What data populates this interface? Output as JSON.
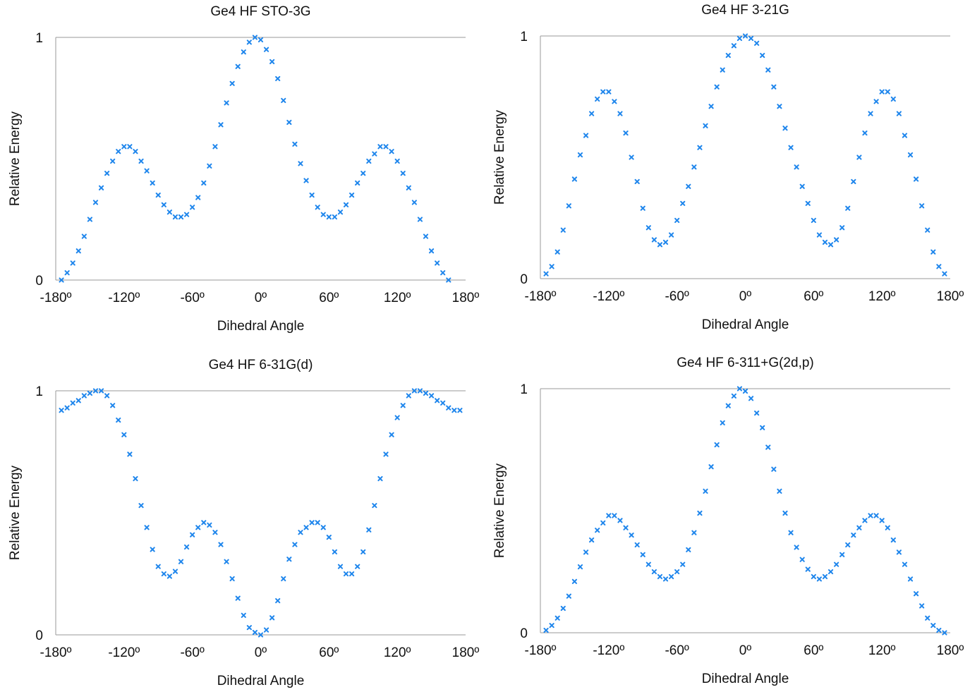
{
  "marker_color": "#1f86ec",
  "axis_color": "#9a9a9a",
  "chart_data": [
    {
      "type": "scatter",
      "title": "Ge4 HF STO-3G",
      "xlabel": "Dihedral Angle",
      "ylabel": "Relative Energy",
      "xlim": [
        -180,
        180
      ],
      "ylim": [
        0,
        1
      ],
      "xticks": [
        "-180º",
        "-120º",
        "-60º",
        "0º",
        "60º",
        "120º",
        "180º"
      ],
      "yticks": [
        "0",
        "1"
      ],
      "x": [
        -175,
        -170,
        -165,
        -160,
        -155,
        -150,
        -145,
        -140,
        -135,
        -130,
        -125,
        -120,
        -115,
        -110,
        -105,
        -100,
        -95,
        -90,
        -85,
        -80,
        -75,
        -70,
        -65,
        -60,
        -55,
        -50,
        -45,
        -40,
        -35,
        -30,
        -25,
        -20,
        -15,
        -10,
        -5,
        0,
        5,
        10,
        15,
        20,
        25,
        30,
        35,
        40,
        45,
        50,
        55,
        60,
        65,
        70,
        75,
        80,
        85,
        90,
        95,
        100,
        105,
        110,
        115,
        120,
        125,
        130,
        135,
        140,
        145,
        150,
        155,
        160,
        165,
        170,
        175
      ],
      "series": [
        {
          "values": [
            0.0,
            0.03,
            0.07,
            0.12,
            0.18,
            0.25,
            0.32,
            0.38,
            0.44,
            0.49,
            0.53,
            0.55,
            0.55,
            0.53,
            0.49,
            0.45,
            0.4,
            0.35,
            0.31,
            0.28,
            0.26,
            0.26,
            0.27,
            0.3,
            0.34,
            0.4,
            0.47,
            0.55,
            0.64,
            0.73,
            0.81,
            0.88,
            0.94,
            0.98,
            1.0,
            0.99,
            0.95,
            0.9,
            0.83,
            0.74,
            0.65,
            0.56,
            0.48,
            0.41,
            0.35,
            0.3,
            0.27,
            0.26,
            0.26,
            0.28,
            0.31,
            0.35,
            0.4,
            0.44,
            0.49,
            0.52,
            0.55,
            0.55,
            0.53,
            0.49,
            0.44,
            0.38,
            0.32,
            0.25,
            0.18,
            0.12,
            0.07,
            0.03,
            0.0
          ]
        }
      ]
    },
    {
      "type": "scatter",
      "title": "Ge4 HF 3-21G",
      "xlabel": "Dihedral Angle",
      "ylabel": "Relative Energy",
      "xlim": [
        -180,
        180
      ],
      "ylim": [
        0,
        1
      ],
      "xticks": [
        "-180º",
        "-120º",
        "-60º",
        "0º",
        "60º",
        "120º",
        "180º"
      ],
      "yticks": [
        "0",
        "1"
      ],
      "x": [
        -175,
        -170,
        -165,
        -160,
        -155,
        -150,
        -145,
        -140,
        -135,
        -130,
        -125,
        -120,
        -115,
        -110,
        -105,
        -100,
        -95,
        -90,
        -85,
        -80,
        -75,
        -70,
        -65,
        -60,
        -55,
        -50,
        -45,
        -40,
        -35,
        -30,
        -25,
        -20,
        -15,
        -10,
        -5,
        0,
        5,
        10,
        15,
        20,
        25,
        30,
        35,
        40,
        45,
        50,
        55,
        60,
        65,
        70,
        75,
        80,
        85,
        90,
        95,
        100,
        105,
        110,
        115,
        120,
        125,
        130,
        135,
        140,
        145,
        150,
        155,
        160,
        165,
        170,
        175
      ],
      "series": [
        {
          "values": [
            0.02,
            0.05,
            0.11,
            0.2,
            0.3,
            0.41,
            0.51,
            0.59,
            0.68,
            0.74,
            0.77,
            0.77,
            0.73,
            0.68,
            0.6,
            0.5,
            0.4,
            0.29,
            0.21,
            0.16,
            0.14,
            0.15,
            0.18,
            0.24,
            0.31,
            0.38,
            0.46,
            0.54,
            0.63,
            0.71,
            0.79,
            0.86,
            0.92,
            0.96,
            0.99,
            1.0,
            0.99,
            0.97,
            0.92,
            0.86,
            0.79,
            0.71,
            0.62,
            0.54,
            0.46,
            0.38,
            0.31,
            0.24,
            0.18,
            0.15,
            0.14,
            0.16,
            0.21,
            0.29,
            0.4,
            0.5,
            0.6,
            0.68,
            0.73,
            0.77,
            0.77,
            0.74,
            0.68,
            0.59,
            0.51,
            0.41,
            0.3,
            0.2,
            0.11,
            0.05,
            0.02
          ]
        }
      ]
    },
    {
      "type": "scatter",
      "title": "Ge4 HF 6-31G(d)",
      "xlabel": "Dihedral Angle",
      "ylabel": "Relative Energy",
      "xlim": [
        -180,
        180
      ],
      "ylim": [
        0,
        1
      ],
      "xticks": [
        "-180º",
        "-120º",
        "-60º",
        "0º",
        "60º",
        "120º",
        "180º"
      ],
      "yticks": [
        "0",
        "1"
      ],
      "x": [
        -175,
        -170,
        -165,
        -160,
        -155,
        -150,
        -145,
        -140,
        -135,
        -130,
        -125,
        -120,
        -115,
        -110,
        -105,
        -100,
        -95,
        -90,
        -85,
        -80,
        -75,
        -70,
        -65,
        -60,
        -55,
        -50,
        -45,
        -40,
        -35,
        -30,
        -25,
        -20,
        -15,
        -10,
        -5,
        0,
        5,
        10,
        15,
        20,
        25,
        30,
        35,
        40,
        45,
        50,
        55,
        60,
        65,
        70,
        75,
        80,
        85,
        90,
        95,
        100,
        105,
        110,
        115,
        120,
        125,
        130,
        135,
        140,
        145,
        150,
        155,
        160,
        165,
        170,
        175
      ],
      "series": [
        {
          "values": [
            0.92,
            0.93,
            0.95,
            0.96,
            0.98,
            0.99,
            1.0,
            1.0,
            0.98,
            0.94,
            0.88,
            0.82,
            0.74,
            0.64,
            0.53,
            0.44,
            0.35,
            0.28,
            0.25,
            0.24,
            0.26,
            0.3,
            0.36,
            0.41,
            0.44,
            0.46,
            0.45,
            0.42,
            0.37,
            0.3,
            0.23,
            0.15,
            0.08,
            0.03,
            0.01,
            0.0,
            0.02,
            0.07,
            0.14,
            0.23,
            0.31,
            0.37,
            0.42,
            0.44,
            0.46,
            0.46,
            0.44,
            0.4,
            0.34,
            0.28,
            0.25,
            0.25,
            0.28,
            0.34,
            0.43,
            0.53,
            0.64,
            0.74,
            0.82,
            0.89,
            0.94,
            0.98,
            1.0,
            1.0,
            0.99,
            0.98,
            0.96,
            0.95,
            0.93,
            0.92,
            0.92
          ]
        }
      ]
    },
    {
      "type": "scatter",
      "title": "Ge4 HF 6-311+G(2d,p)",
      "xlabel": "Dihedral Angle",
      "ylabel": "Relative Energy",
      "xlim": [
        -180,
        180
      ],
      "ylim": [
        0,
        1
      ],
      "xticks": [
        "-180º",
        "-120º",
        "-60º",
        "0º",
        "60º",
        "120º",
        "180º"
      ],
      "yticks": [
        "0",
        "1"
      ],
      "x": [
        -175,
        -170,
        -165,
        -160,
        -155,
        -150,
        -145,
        -140,
        -135,
        -130,
        -125,
        -120,
        -115,
        -110,
        -105,
        -100,
        -95,
        -90,
        -85,
        -80,
        -75,
        -70,
        -65,
        -60,
        -55,
        -50,
        -45,
        -40,
        -35,
        -30,
        -25,
        -20,
        -15,
        -10,
        -5,
        0,
        5,
        10,
        15,
        20,
        25,
        30,
        35,
        40,
        45,
        50,
        55,
        60,
        65,
        70,
        75,
        80,
        85,
        90,
        95,
        100,
        105,
        110,
        115,
        120,
        125,
        130,
        135,
        140,
        145,
        150,
        155,
        160,
        165,
        170,
        175
      ],
      "series": [
        {
          "values": [
            0.01,
            0.03,
            0.06,
            0.1,
            0.15,
            0.21,
            0.27,
            0.33,
            0.38,
            0.42,
            0.45,
            0.48,
            0.48,
            0.46,
            0.43,
            0.4,
            0.36,
            0.32,
            0.28,
            0.25,
            0.23,
            0.22,
            0.23,
            0.25,
            0.28,
            0.34,
            0.41,
            0.49,
            0.58,
            0.68,
            0.77,
            0.86,
            0.93,
            0.97,
            1.0,
            0.99,
            0.96,
            0.9,
            0.84,
            0.76,
            0.67,
            0.58,
            0.49,
            0.41,
            0.35,
            0.3,
            0.26,
            0.23,
            0.22,
            0.23,
            0.25,
            0.28,
            0.32,
            0.36,
            0.4,
            0.43,
            0.46,
            0.48,
            0.48,
            0.46,
            0.43,
            0.38,
            0.33,
            0.28,
            0.22,
            0.16,
            0.11,
            0.06,
            0.03,
            0.01,
            0.0
          ]
        }
      ]
    }
  ]
}
